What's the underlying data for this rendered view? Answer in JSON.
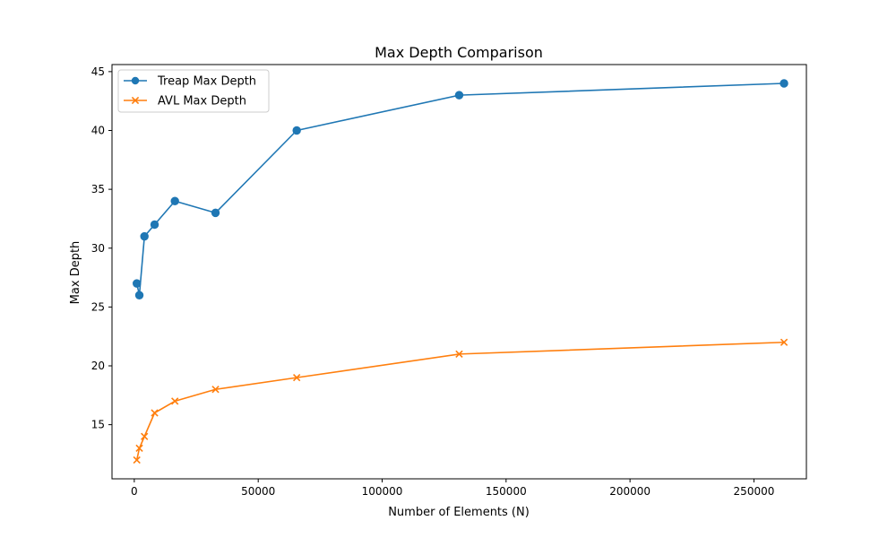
{
  "chart_data": {
    "type": "line",
    "title": "Max Depth Comparison",
    "xlabel": "Number of Elements (N)",
    "ylabel": "Max Depth",
    "xlim": [
      -8989.44,
      271161.44
    ],
    "ylim": [
      10.4,
      45.6
    ],
    "x": [
      1024,
      2048,
      4096,
      8192,
      16384,
      32768,
      65536,
      131072,
      262144
    ],
    "xticks": [
      0,
      50000,
      100000,
      150000,
      200000,
      250000
    ],
    "yticks": [
      15,
      20,
      25,
      30,
      35,
      40,
      45
    ],
    "grid": false,
    "legend_position": "upper-left",
    "series": [
      {
        "name": "Treap Max Depth",
        "color": "#1f77b4",
        "marker": "circle",
        "values": [
          27,
          26,
          31,
          32,
          34,
          33,
          40,
          43,
          44
        ]
      },
      {
        "name": "AVL Max Depth",
        "color": "#ff7f0e",
        "marker": "x",
        "values": [
          12,
          13,
          14,
          16,
          17,
          18,
          19,
          21,
          22
        ]
      }
    ]
  }
}
